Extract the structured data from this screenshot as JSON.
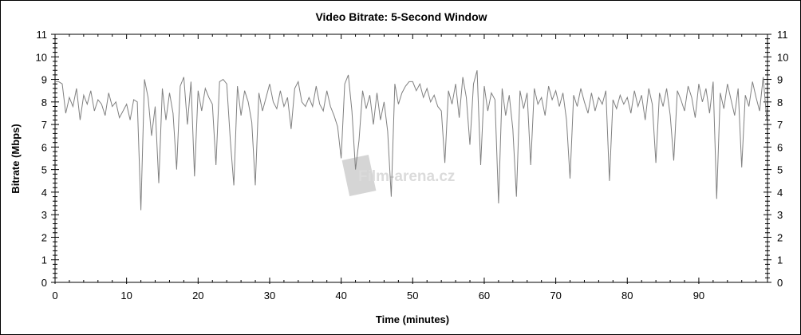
{
  "chart_data": {
    "type": "line",
    "title": "Video Bitrate: 5-Second Window",
    "xlabel": "Time (minutes)",
    "ylabel": "Bitrate (Mbps)",
    "xlim": [
      0,
      99.6
    ],
    "ylim": [
      0,
      11
    ],
    "x_ticks": [
      0,
      10,
      20,
      30,
      40,
      50,
      60,
      70,
      80,
      90
    ],
    "y_ticks": [
      0,
      1,
      2,
      3,
      4,
      5,
      6,
      7,
      8,
      9,
      10,
      11
    ],
    "grid": false,
    "line_color": "#808080",
    "x_step_minutes": 0.5,
    "series": [
      {
        "values": [
          8.9,
          8.9,
          8.8,
          7.5,
          8.2,
          7.8,
          8.6,
          7.2,
          8.3,
          7.9,
          8.5,
          7.6,
          8.1,
          7.9,
          7.4,
          8.4,
          7.8,
          8.0,
          7.3,
          7.6,
          7.9,
          7.2,
          8.1,
          8.0,
          3.2,
          9.0,
          8.2,
          6.5,
          7.8,
          4.4,
          8.6,
          7.2,
          8.4,
          7.5,
          5.0,
          8.7,
          9.1,
          7.0,
          8.9,
          4.7,
          8.5,
          7.6,
          8.6,
          8.2,
          7.9,
          5.2,
          8.9,
          9.0,
          8.8,
          6.3,
          4.3,
          8.7,
          7.4,
          8.5,
          8.0,
          7.1,
          4.3,
          8.4,
          7.6,
          8.2,
          8.8,
          8.0,
          7.7,
          8.5,
          7.8,
          8.2,
          6.8,
          8.6,
          8.9,
          8.0,
          7.8,
          8.2,
          7.8,
          8.7,
          7.9,
          7.6,
          8.5,
          7.8,
          7.4,
          6.9,
          5.5,
          8.8,
          9.2,
          7.6,
          5.0,
          6.3,
          8.5,
          7.7,
          8.3,
          7.0,
          8.4,
          7.2,
          8.0,
          6.7,
          3.8,
          8.8,
          7.9,
          8.4,
          8.7,
          8.9,
          8.9,
          8.5,
          8.8,
          8.2,
          8.6,
          8.0,
          8.3,
          7.8,
          7.6,
          5.3,
          8.5,
          7.9,
          8.8,
          7.3,
          9.1,
          8.2,
          6.1,
          8.8,
          9.4,
          5.2,
          8.7,
          7.6,
          8.4,
          8.1,
          3.5,
          8.6,
          7.4,
          8.3,
          6.8,
          3.8,
          8.5,
          7.7,
          8.4,
          5.2,
          8.6,
          7.9,
          8.2,
          7.4,
          8.7,
          8.1,
          8.5,
          7.8,
          8.4,
          7.2,
          4.6,
          8.3,
          7.8,
          8.6,
          8.0,
          7.5,
          8.4,
          7.6,
          8.2,
          7.9,
          8.5,
          4.5,
          8.1,
          7.7,
          8.3,
          7.9,
          8.2,
          7.5,
          8.5,
          7.8,
          8.3,
          7.2,
          8.6,
          7.9,
          5.3,
          8.4,
          7.8,
          8.6,
          7.4,
          5.4,
          8.5,
          8.1,
          7.6,
          8.7,
          8.2,
          7.3,
          8.8,
          8.0,
          8.6,
          7.5,
          8.9,
          3.7,
          8.4,
          7.7,
          8.8,
          8.1,
          7.4,
          8.6,
          5.1,
          8.3,
          7.8,
          8.9,
          8.2,
          7.6,
          9.1,
          7.2
        ]
      }
    ],
    "watermark": "Film-arena.cz"
  }
}
